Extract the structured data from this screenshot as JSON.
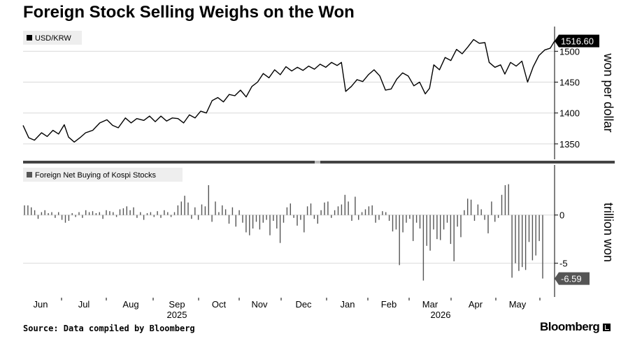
{
  "title": "Foreign Stock Selling Weighs on the Won",
  "source": "Source: Data compiled by Bloomberg",
  "brand": "Bloomberg",
  "months": [
    "Jun",
    "Jul",
    "Aug",
    "Sep",
    "Oct",
    "Nov",
    "Dec",
    "Jan",
    "Feb",
    "Mar",
    "Apr",
    "May"
  ],
  "years": [
    "2025",
    "2026"
  ],
  "colors": {
    "fx_line": "#000000",
    "bars": "#555555",
    "grid": "#d9d9d9",
    "label_bg": "#000000",
    "label_bg2": "#555555"
  },
  "chart_data": [
    {
      "type": "line",
      "legend": "USD/KRW",
      "ylabel": "won per dollar",
      "ylim": [
        1325,
        1540
      ],
      "yticks": [
        1350,
        1400,
        1450,
        1500
      ],
      "last_label": "1516.60",
      "x_start": "2025-05-20",
      "x_end": "2026-05-29",
      "series": [
        {
          "name": "USD/KRW",
          "points": [
            [
              "2025-05-20",
              1380
            ],
            [
              "2025-05-24",
              1360
            ],
            [
              "2025-05-28",
              1356
            ],
            [
              "2025-06-02",
              1368
            ],
            [
              "2025-06-06",
              1362
            ],
            [
              "2025-06-10",
              1372
            ],
            [
              "2025-06-14",
              1366
            ],
            [
              "2025-06-18",
              1381
            ],
            [
              "2025-06-21",
              1361
            ],
            [
              "2025-06-25",
              1353
            ],
            [
              "2025-06-29",
              1360
            ],
            [
              "2025-07-03",
              1368
            ],
            [
              "2025-07-08",
              1372
            ],
            [
              "2025-07-13",
              1384
            ],
            [
              "2025-07-18",
              1389
            ],
            [
              "2025-07-22",
              1380
            ],
            [
              "2025-07-26",
              1376
            ],
            [
              "2025-07-31",
              1392
            ],
            [
              "2025-08-04",
              1384
            ],
            [
              "2025-08-08",
              1391
            ],
            [
              "2025-08-13",
              1388
            ],
            [
              "2025-08-17",
              1395
            ],
            [
              "2025-08-21",
              1386
            ],
            [
              "2025-08-25",
              1395
            ],
            [
              "2025-08-29",
              1387
            ],
            [
              "2025-09-02",
              1392
            ],
            [
              "2025-09-06",
              1391
            ],
            [
              "2025-09-10",
              1384
            ],
            [
              "2025-09-14",
              1397
            ],
            [
              "2025-09-18",
              1392
            ],
            [
              "2025-09-22",
              1403
            ],
            [
              "2025-09-26",
              1400
            ],
            [
              "2025-09-30",
              1420
            ],
            [
              "2025-10-04",
              1425
            ],
            [
              "2025-10-08",
              1418
            ],
            [
              "2025-10-12",
              1430
            ],
            [
              "2025-10-16",
              1428
            ],
            [
              "2025-10-20",
              1437
            ],
            [
              "2025-10-24",
              1426
            ],
            [
              "2025-10-28",
              1443
            ],
            [
              "2025-11-01",
              1450
            ],
            [
              "2025-11-05",
              1464
            ],
            [
              "2025-11-09",
              1457
            ],
            [
              "2025-11-13",
              1470
            ],
            [
              "2025-11-17",
              1462
            ],
            [
              "2025-11-21",
              1475
            ],
            [
              "2025-11-25",
              1468
            ],
            [
              "2025-11-29",
              1474
            ],
            [
              "2025-12-03",
              1469
            ],
            [
              "2025-12-07",
              1476
            ],
            [
              "2025-12-11",
              1471
            ],
            [
              "2025-12-15",
              1479
            ],
            [
              "2025-12-19",
              1474
            ],
            [
              "2025-12-23",
              1482
            ],
            [
              "2025-12-27",
              1477
            ],
            [
              "2025-12-30",
              1482
            ],
            [
              "2026-01-02",
              1435
            ],
            [
              "2026-01-06",
              1443
            ],
            [
              "2026-01-10",
              1454
            ],
            [
              "2026-01-14",
              1451
            ],
            [
              "2026-01-18",
              1462
            ],
            [
              "2026-01-22",
              1470
            ],
            [
              "2026-01-26",
              1460
            ],
            [
              "2026-01-30",
              1437
            ],
            [
              "2026-02-03",
              1439
            ],
            [
              "2026-02-07",
              1455
            ],
            [
              "2026-02-11",
              1465
            ],
            [
              "2026-02-15",
              1460
            ],
            [
              "2026-02-19",
              1444
            ],
            [
              "2026-02-23",
              1450
            ],
            [
              "2026-02-27",
              1431
            ],
            [
              "2026-03-02",
              1440
            ],
            [
              "2026-03-05",
              1478
            ],
            [
              "2026-03-09",
              1470
            ],
            [
              "2026-03-13",
              1490
            ],
            [
              "2026-03-17",
              1485
            ],
            [
              "2026-03-21",
              1503
            ],
            [
              "2026-03-25",
              1496
            ],
            [
              "2026-03-29",
              1507
            ],
            [
              "2026-04-02",
              1519
            ],
            [
              "2026-04-06",
              1513
            ],
            [
              "2026-04-10",
              1514
            ],
            [
              "2026-04-13",
              1482
            ],
            [
              "2026-04-17",
              1474
            ],
            [
              "2026-04-21",
              1478
            ],
            [
              "2026-04-24",
              1463
            ],
            [
              "2026-04-28",
              1482
            ],
            [
              "2026-05-02",
              1476
            ],
            [
              "2026-05-06",
              1484
            ],
            [
              "2026-05-10",
              1450
            ],
            [
              "2026-05-14",
              1475
            ],
            [
              "2026-05-18",
              1493
            ],
            [
              "2026-05-22",
              1502
            ],
            [
              "2026-05-26",
              1505
            ],
            [
              "2026-05-29",
              1516.6
            ]
          ]
        }
      ]
    },
    {
      "type": "bar",
      "legend": "Foreign Net Buying of Kospi Stocks",
      "ylabel": "trillion won",
      "ylim": [
        -8.5,
        5.2
      ],
      "yticks": [
        -5,
        0
      ],
      "last_label": "-6.59",
      "x_start": "2025-05-20",
      "x_end": "2026-05-29",
      "series": [
        {
          "name": "Foreign Net Buying of Kospi Stocks",
          "values": [
            1.0,
            1.0,
            0.8,
            0.5,
            -0.4,
            0.3,
            0.5,
            0.2,
            0.3,
            -0.3,
            0.3,
            -0.5,
            -0.8,
            -0.6,
            0.2,
            -0.2,
            0.3,
            -0.3,
            0.5,
            0.3,
            0.4,
            0.2,
            0.3,
            -0.4,
            0.5,
            0.4,
            0.3,
            -0.2,
            0.6,
            0.7,
            0.9,
            0.5,
            0.8,
            -0.3,
            0.3,
            -0.5,
            0.2,
            0.3,
            -0.2,
            0.4,
            -0.3,
            0.5,
            0.3,
            -0.2,
            0.3,
            1.0,
            1.4,
            2.0,
            1.3,
            -0.4,
            0.8,
            -0.5,
            1.1,
            0.9,
            3.1,
            -0.7,
            1.4,
            0.3,
            1.0,
            0.6,
            -0.9,
            0.8,
            -1.2,
            0.5,
            -0.8,
            -1.8,
            -2.1,
            -1.4,
            -0.7,
            -1.5,
            -0.8,
            -0.5,
            -2.1,
            -0.6,
            -1.4,
            -2.9,
            -0.8,
            0.8,
            1.2,
            -0.3,
            -1.1,
            -0.5,
            -1.8,
            0.9,
            1.2,
            -0.4,
            -0.9,
            0.5,
            1.3,
            1.4,
            -0.3,
            0.5,
            0.9,
            1.1,
            2.1,
            1.4,
            -0.6,
            1.9,
            -0.5,
            0.3,
            0.6,
            0.9,
            1.0,
            -0.8,
            -0.5,
            0.4,
            0.3,
            -0.6,
            -1.7,
            -1.5,
            -5.2,
            -1.8,
            -0.8,
            -0.4,
            -2.7,
            -0.8,
            -1.4,
            -6.8,
            -3.2,
            -3.7,
            -1.5,
            -2.5,
            -2.6,
            -1.5,
            -0.8,
            -3.0,
            -4.8,
            -1.2,
            -2.3,
            0.5,
            1.7,
            1.6,
            -0.6,
            1.1,
            0.6,
            -0.5,
            -1.9,
            1.4,
            -0.7,
            -0.3,
            2.1,
            3.1,
            3.2,
            -6.5,
            -5.0,
            -5.8,
            -5.4,
            -5.7,
            -2.8,
            -4.7,
            -4.2,
            -2.7,
            -6.59
          ]
        }
      ]
    }
  ]
}
